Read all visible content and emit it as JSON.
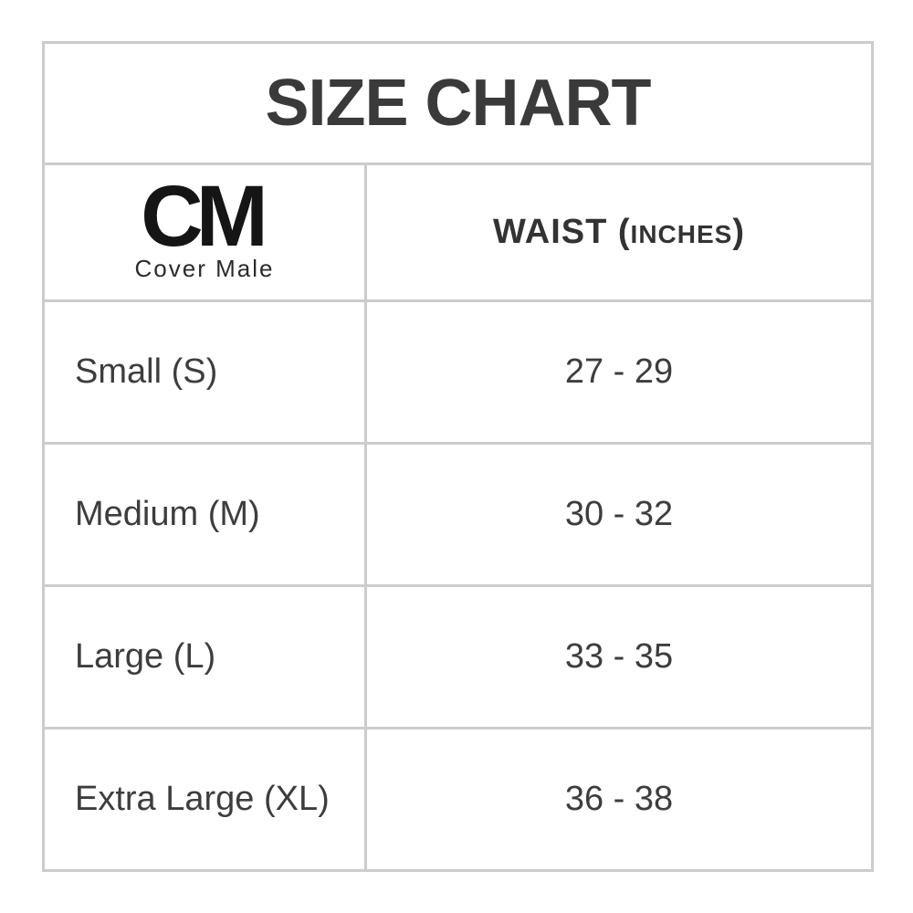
{
  "title": "SIZE CHART",
  "brand": {
    "mark": "CM",
    "name": "Cover Male"
  },
  "waist_header": {
    "large_prefix": "WAIST (",
    "small": "INCHES",
    "large_suffix": ")"
  },
  "rows": [
    {
      "size": "Small (S)",
      "waist": "27 - 29"
    },
    {
      "size": "Medium (M)",
      "waist": "30 - 32"
    },
    {
      "size": "Large (L)",
      "waist": "33 - 35"
    },
    {
      "size": "Extra Large (XL)",
      "waist": "36 - 38"
    }
  ],
  "colors": {
    "border": "#cccccc",
    "header_background": "#f0f0f0",
    "text": "#3d3d3d",
    "title_text": "#3a3a3a",
    "logo": "#151515"
  },
  "chart_data": {
    "type": "table",
    "title": "SIZE CHART",
    "columns": [
      "CM Cover Male",
      "WAIST (INCHES)"
    ],
    "rows": [
      [
        "Small (S)",
        "27 - 29"
      ],
      [
        "Medium (M)",
        "30 - 32"
      ],
      [
        "Large (L)",
        "33 - 35"
      ],
      [
        "Extra Large (XL)",
        "36 - 38"
      ]
    ]
  }
}
